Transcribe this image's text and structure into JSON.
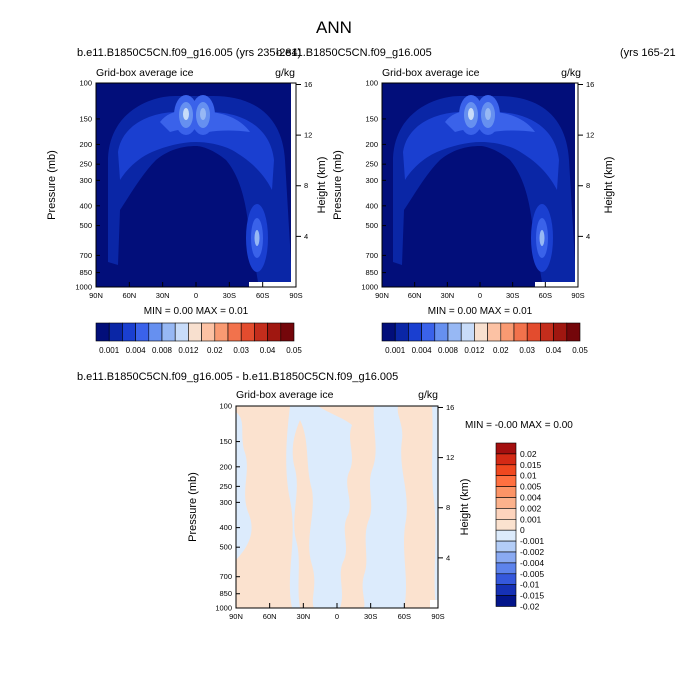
{
  "chart_data": {
    "title": "ANN",
    "panels": [
      {
        "type": "heatmap",
        "case_title": "b.e11.B1850C5CN.f09_g16.005 (yrs 235-284)",
        "left_label": "Grid-box average ice",
        "right_label": "g/kg",
        "xlabel": "",
        "ylabel": "Pressure (mb)",
        "ylabel_right": "Height (km)",
        "x_ticks": [
          "90N",
          "60N",
          "30N",
          "0",
          "30S",
          "60S",
          "90S"
        ],
        "y_ticks": [
          "100",
          "150",
          "200",
          "250",
          "300",
          "400",
          "500",
          "700",
          "850",
          "1000"
        ],
        "height_ticks": [
          "16",
          "12",
          "8",
          "4"
        ],
        "stats": "MIN =  0.00  MAX =  0.01",
        "colorbar_levels": [
          "0.001",
          "0.004",
          "0.008",
          "0.012",
          "0.02",
          "0.03",
          "0.04",
          "0.05"
        ]
      },
      {
        "type": "heatmap",
        "case_title": "b.e11.B1850C5CN.f09_g16.005",
        "case_suffix": "(yrs 165-21",
        "left_label": "Grid-box average ice",
        "right_label": "g/kg",
        "ylabel": "Pressure (mb)",
        "ylabel_right": "Height (km)",
        "x_ticks": [
          "90N",
          "60N",
          "30N",
          "0",
          "30S",
          "60S",
          "90S"
        ],
        "y_ticks": [
          "100",
          "150",
          "200",
          "250",
          "300",
          "400",
          "500",
          "700",
          "850",
          "1000"
        ],
        "height_ticks": [
          "16",
          "12",
          "8",
          "4"
        ],
        "stats": "MIN =  0.00  MAX =  0.01",
        "colorbar_levels": [
          "0.001",
          "0.004",
          "0.008",
          "0.012",
          "0.02",
          "0.03",
          "0.04",
          "0.05"
        ]
      },
      {
        "type": "heatmap",
        "case_title": "b.e11.B1850C5CN.f09_g16.005 - b.e11.B1850C5CN.f09_g16.005",
        "left_label": "Grid-box average ice",
        "right_label": "g/kg",
        "ylabel": "Pressure (mb)",
        "ylabel_right": "Height (km)",
        "x_ticks": [
          "90N",
          "60N",
          "30N",
          "0",
          "30S",
          "60S",
          "90S"
        ],
        "y_ticks": [
          "100",
          "150",
          "200",
          "250",
          "300",
          "400",
          "500",
          "700",
          "850",
          "1000"
        ],
        "height_ticks": [
          "16",
          "12",
          "8",
          "4"
        ],
        "stats": "MIN = -0.00  MAX =  0.00",
        "colorbar_levels": [
          "0.02",
          "0.015",
          "0.01",
          "0.005",
          "0.004",
          "0.002",
          "0.001",
          "0",
          "-0.001",
          "-0.002",
          "-0.004",
          "-0.005",
          "-0.01",
          "-0.015",
          "-0.02"
        ]
      }
    ]
  },
  "colors": {
    "seq": [
      "#020e7a",
      "#0a26a6",
      "#1a3fd0",
      "#3a62ea",
      "#6690f0",
      "#97b8f4",
      "#c8dcf9",
      "#f8e0cf",
      "#fcc2a4",
      "#f99a72",
      "#f2724c",
      "#e34c2e",
      "#c42d1c",
      "#a01710",
      "#74060a"
    ],
    "diff": [
      "#a40f0f",
      "#d42a15",
      "#f0481f",
      "#ff7040",
      "#fc9466",
      "#fcb28c",
      "#fdd4bd",
      "#fbe2cf",
      "#dcebfc",
      "#b3cdf7",
      "#8aaaf2",
      "#5d83ec",
      "#3558dc",
      "#1631b5",
      "#03158a"
    ]
  }
}
